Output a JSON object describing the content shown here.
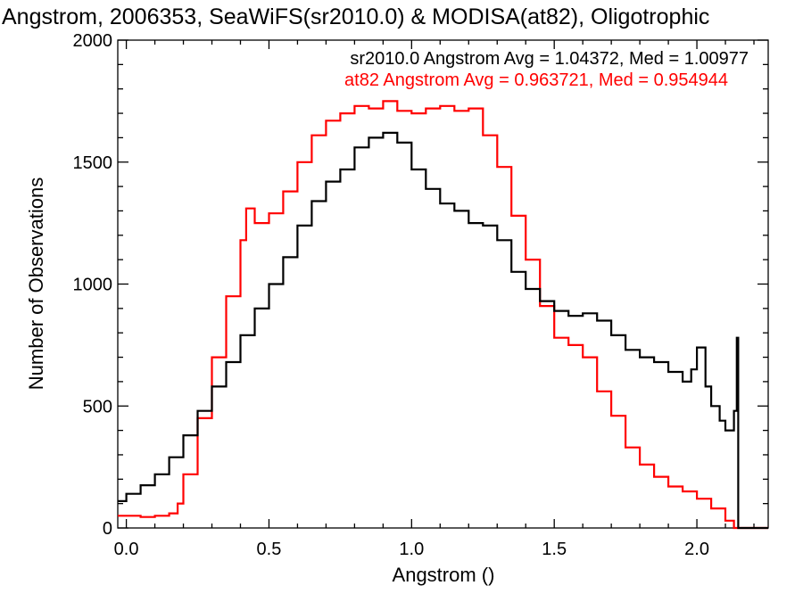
{
  "chart_data": {
    "type": "line",
    "title": "Angstrom, 2006353, SeaWiFS(sr2010.0) & MODISA(at82), Oligotrophic",
    "xlabel": "Angstrom ()",
    "ylabel": "Number of Observations",
    "xlim": [
      -0.03,
      2.25
    ],
    "ylim": [
      0,
      2000
    ],
    "xticks": [
      0.0,
      0.5,
      1.0,
      1.5,
      2.0
    ],
    "xtick_labels": [
      "0.0",
      "0.5",
      "1.0",
      "1.5",
      "2.0"
    ],
    "yticks": [
      0,
      500,
      1000,
      1500,
      2000
    ],
    "ytick_labels": [
      "0",
      "500",
      "1000",
      "1500",
      "2000"
    ],
    "grid": false,
    "series": [
      {
        "name": "sr2010.0",
        "color": "#000000",
        "stat_text": "sr2010.0 Angstrom Avg = 1.04372, Med = 1.00977",
        "x": [
          -0.03,
          0.0,
          0.05,
          0.1,
          0.15,
          0.2,
          0.25,
          0.3,
          0.35,
          0.4,
          0.45,
          0.5,
          0.55,
          0.6,
          0.65,
          0.7,
          0.75,
          0.8,
          0.85,
          0.9,
          0.95,
          1.0,
          1.05,
          1.1,
          1.15,
          1.2,
          1.25,
          1.3,
          1.35,
          1.4,
          1.45,
          1.5,
          1.55,
          1.6,
          1.65,
          1.7,
          1.75,
          1.8,
          1.85,
          1.9,
          1.95,
          1.98,
          2.0,
          2.03,
          2.05,
          2.08,
          2.1,
          2.13,
          2.14,
          2.145,
          2.25
        ],
        "y": [
          110,
          140,
          175,
          220,
          290,
          380,
          480,
          580,
          680,
          790,
          900,
          1000,
          1110,
          1240,
          1340,
          1420,
          1470,
          1560,
          1600,
          1620,
          1580,
          1470,
          1390,
          1330,
          1300,
          1250,
          1240,
          1180,
          1050,
          980,
          930,
          890,
          870,
          880,
          850,
          790,
          730,
          700,
          680,
          640,
          600,
          650,
          740,
          580,
          500,
          440,
          400,
          480,
          780,
          0,
          0
        ]
      },
      {
        "name": "at82",
        "color": "#ff0000",
        "stat_text": "at82 Angstrom Avg = 0.963721, Med = 0.954944",
        "x": [
          -0.03,
          0.05,
          0.1,
          0.15,
          0.18,
          0.2,
          0.25,
          0.3,
          0.35,
          0.4,
          0.42,
          0.45,
          0.5,
          0.55,
          0.6,
          0.65,
          0.7,
          0.75,
          0.8,
          0.85,
          0.9,
          0.95,
          1.0,
          1.05,
          1.1,
          1.15,
          1.2,
          1.25,
          1.3,
          1.35,
          1.4,
          1.45,
          1.5,
          1.55,
          1.6,
          1.65,
          1.7,
          1.75,
          1.8,
          1.85,
          1.9,
          1.95,
          2.0,
          2.05,
          2.1,
          2.13,
          2.25
        ],
        "y": [
          50,
          45,
          50,
          60,
          100,
          220,
          450,
          700,
          950,
          1180,
          1310,
          1250,
          1290,
          1380,
          1500,
          1610,
          1670,
          1700,
          1730,
          1720,
          1750,
          1710,
          1700,
          1720,
          1730,
          1710,
          1720,
          1610,
          1480,
          1280,
          1100,
          910,
          780,
          750,
          700,
          560,
          460,
          330,
          260,
          210,
          170,
          150,
          120,
          80,
          30,
          0,
          0
        ]
      }
    ]
  }
}
